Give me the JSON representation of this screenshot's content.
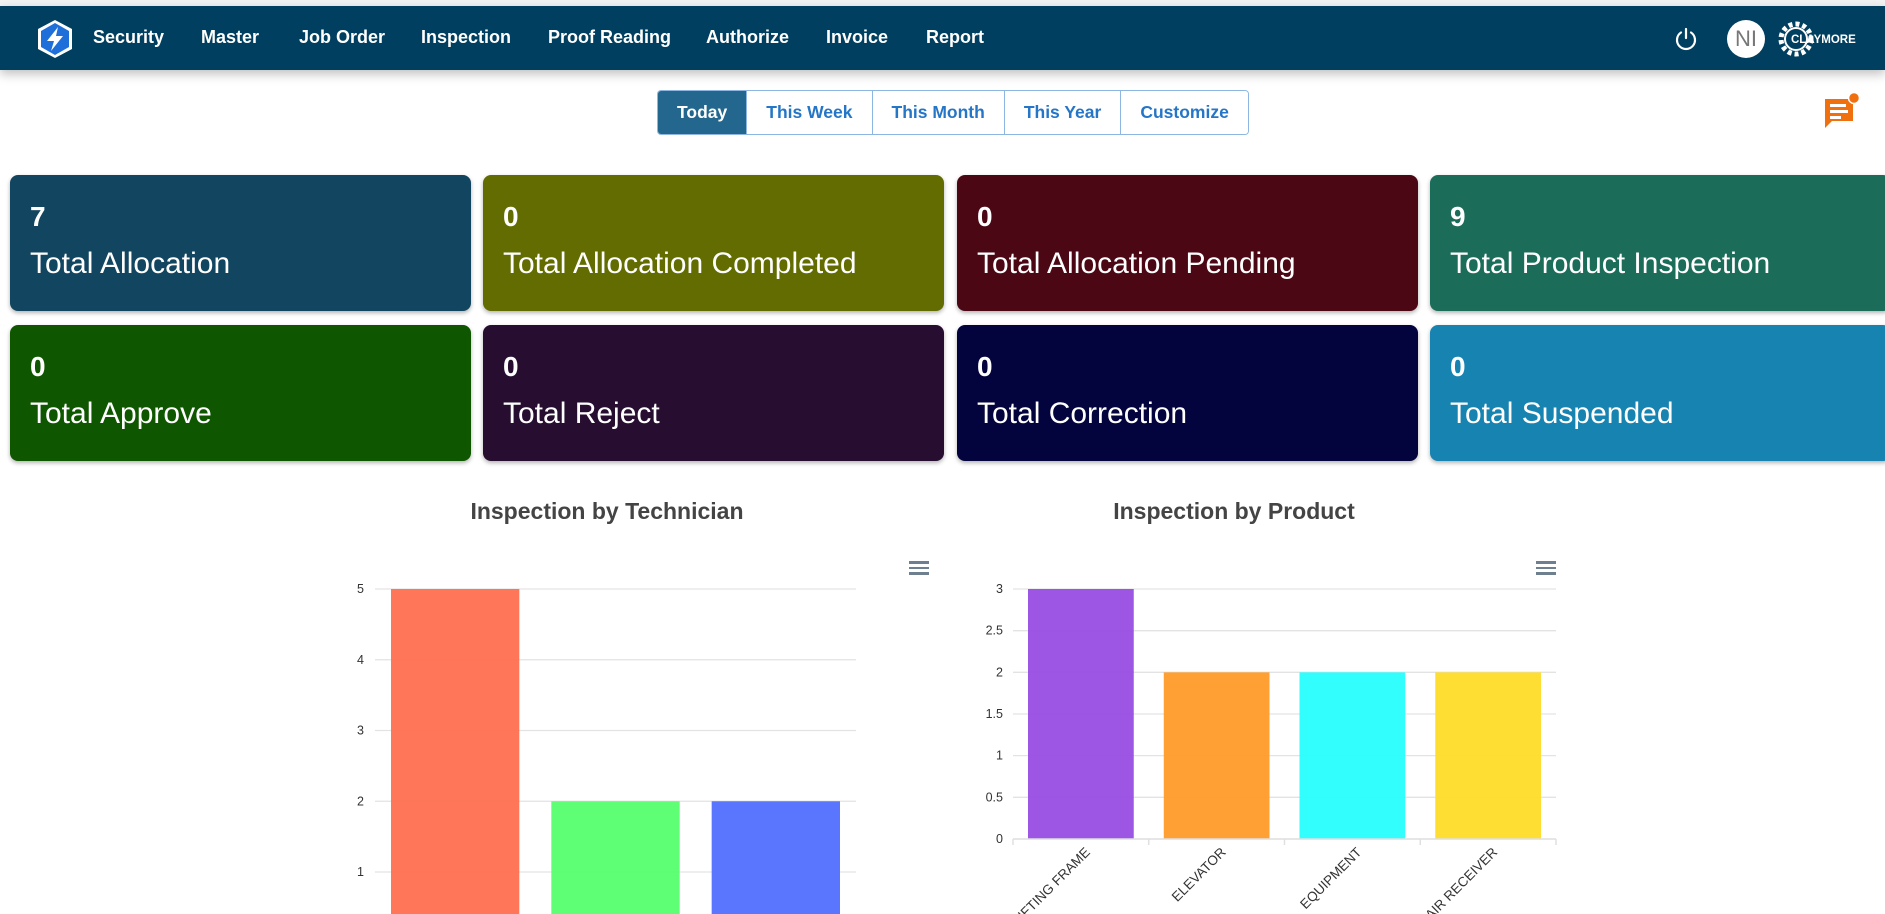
{
  "navbar": {
    "items": [
      {
        "label": "Security"
      },
      {
        "label": "Master"
      },
      {
        "label": "Job Order"
      },
      {
        "label": "Inspection"
      },
      {
        "label": "Proof Reading"
      },
      {
        "label": "Authorize"
      },
      {
        "label": "Invoice"
      },
      {
        "label": "Report"
      }
    ],
    "avatar_initials": "NI",
    "brand_text": "CLAYMORE",
    "icons": {
      "logo": "lightning-hexagon-icon",
      "power": "power-icon",
      "chat": "chat-notification-icon"
    },
    "color": "#003f5f"
  },
  "period_tabs": {
    "items": [
      {
        "label": "Today",
        "active": true
      },
      {
        "label": "This Week",
        "active": false
      },
      {
        "label": "This Month",
        "active": false
      },
      {
        "label": "This Year",
        "active": false
      },
      {
        "label": "Customize",
        "active": false
      }
    ]
  },
  "stats": [
    {
      "value": "7",
      "label": "Total Allocation",
      "color": "#12455f"
    },
    {
      "value": "0",
      "label": "Total Allocation Completed",
      "color": "#636c00"
    },
    {
      "value": "0",
      "label": "Total Allocation Pending",
      "color": "#4b0814"
    },
    {
      "value": "9",
      "label": "Total Product Inspection",
      "color": "#1b6d5a"
    },
    {
      "value": "0",
      "label": "Total Approve",
      "color": "#0f5600"
    },
    {
      "value": "0",
      "label": "Total Reject",
      "color": "#270d30"
    },
    {
      "value": "0",
      "label": "Total Correction",
      "color": "#03033d"
    },
    {
      "value": "0",
      "label": "Total Suspended",
      "color": "#1683b0"
    }
  ],
  "chart_data": [
    {
      "type": "bar",
      "title": "Inspection by Technician",
      "categories": [
        "",
        "",
        ""
      ],
      "values": [
        5,
        2,
        2
      ],
      "colors": [
        "#ff6f4f",
        "#55ff6d",
        "#526ffe"
      ],
      "yticks": [
        1,
        2,
        3,
        4,
        5
      ],
      "ylim": [
        0,
        5
      ],
      "grid": true,
      "xlabel": "",
      "ylabel": ""
    },
    {
      "type": "bar",
      "title": "Inspection by Product",
      "categories": [
        "LIFTING FRAME",
        "ELEVATOR",
        "EQUIPMENT",
        "AIR RECEIVER"
      ],
      "category_labels_visible": [
        "TING FRAME",
        "ELEVATOR",
        "EQUIPMENT",
        "IR RECEIVER"
      ],
      "values": [
        3,
        2,
        2,
        2
      ],
      "colors": [
        "#984ce3",
        "#fe9b28",
        "#27fefe",
        "#fedc28"
      ],
      "yticks": [
        0,
        0.5,
        1,
        1.5,
        2,
        2.5,
        3
      ],
      "ylim": [
        0,
        3
      ],
      "grid": true,
      "xlabel": "",
      "ylabel": ""
    }
  ]
}
